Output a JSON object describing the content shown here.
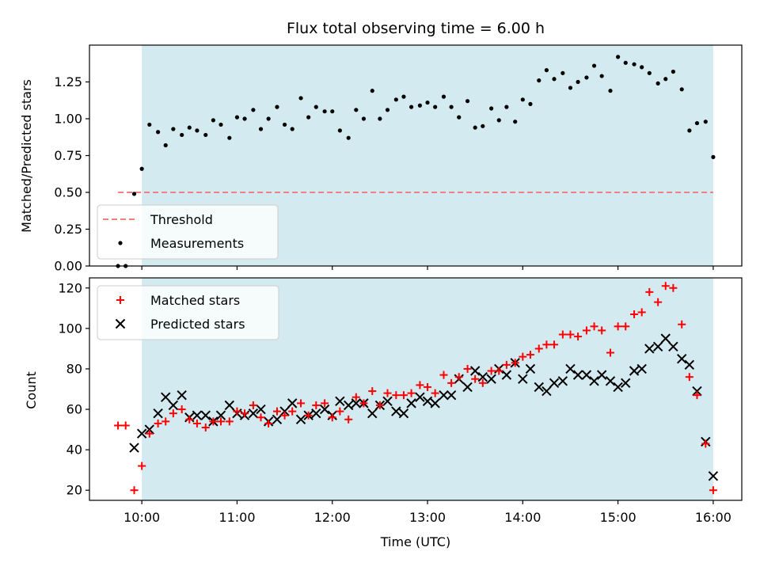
{
  "colors": {
    "observing_window": "#d3eaf0",
    "threshold": "#f08080",
    "measurements": "#000000",
    "matched": "#ff0000",
    "predicted": "#000000"
  },
  "chart_data": [
    {
      "type": "scatter",
      "title": "Flux total observing time = 6.00 h",
      "xlabel": "",
      "ylabel": "Matched/Predicted stars",
      "xlim": [
        9.45,
        16.3
      ],
      "ylim": [
        0.0,
        1.5
      ],
      "yticks": [
        0.0,
        0.25,
        0.5,
        0.75,
        1.0,
        1.25
      ],
      "ytick_labels": [
        "0.00",
        "0.25",
        "0.50",
        "0.75",
        "1.00",
        "1.25"
      ],
      "observing_window": [
        10.0,
        16.0
      ],
      "threshold": {
        "name": "Threshold",
        "y": 0.5,
        "x_range": [
          9.75,
          16.0
        ],
        "style": "dashed"
      },
      "legend": {
        "position": "lower-left",
        "entries": [
          "Threshold",
          "Measurements"
        ]
      },
      "series": [
        {
          "name": "Measurements",
          "marker": "dot",
          "x": [
            9.75,
            9.83,
            9.92,
            10.0,
            10.08,
            10.17,
            10.25,
            10.33,
            10.42,
            10.5,
            10.58,
            10.67,
            10.75,
            10.83,
            10.92,
            11.0,
            11.08,
            11.17,
            11.25,
            11.33,
            11.42,
            11.5,
            11.58,
            11.67,
            11.75,
            11.83,
            11.92,
            12.0,
            12.08,
            12.17,
            12.25,
            12.33,
            12.42,
            12.5,
            12.58,
            12.67,
            12.75,
            12.83,
            12.92,
            13.0,
            13.08,
            13.17,
            13.25,
            13.33,
            13.42,
            13.5,
            13.58,
            13.67,
            13.75,
            13.83,
            13.92,
            14.0,
            14.08,
            14.17,
            14.25,
            14.33,
            14.42,
            14.5,
            14.58,
            14.67,
            14.75,
            14.83,
            14.92,
            15.0,
            15.08,
            15.17,
            15.25,
            15.33,
            15.42,
            15.5,
            15.58,
            15.67,
            15.75,
            15.83,
            15.92,
            16.0
          ],
          "y": [
            0.0,
            0.0,
            0.49,
            0.66,
            0.96,
            0.91,
            0.82,
            0.93,
            0.89,
            0.94,
            0.92,
            0.89,
            0.99,
            0.96,
            0.87,
            1.01,
            1.0,
            1.06,
            0.93,
            1.0,
            1.08,
            0.96,
            0.93,
            1.14,
            1.01,
            1.08,
            1.05,
            1.05,
            0.92,
            0.87,
            1.06,
            1.0,
            1.19,
            1.0,
            1.06,
            1.13,
            1.15,
            1.08,
            1.09,
            1.11,
            1.08,
            1.15,
            1.08,
            1.01,
            1.12,
            0.94,
            0.95,
            1.07,
            0.99,
            1.08,
            0.98,
            1.13,
            1.1,
            1.26,
            1.33,
            1.27,
            1.31,
            1.21,
            1.25,
            1.28,
            1.36,
            1.29,
            1.19,
            1.42,
            1.38,
            1.37,
            1.35,
            1.31,
            1.24,
            1.27,
            1.32,
            1.2,
            0.92,
            0.97,
            0.98,
            0.74
          ]
        }
      ]
    },
    {
      "type": "scatter",
      "title": "",
      "xlabel": "Time (UTC)",
      "ylabel": "Count",
      "xlim": [
        9.45,
        16.3
      ],
      "ylim": [
        15,
        125
      ],
      "yticks": [
        20,
        40,
        60,
        80,
        100,
        120
      ],
      "xticks": [
        10,
        11,
        12,
        13,
        14,
        15,
        16
      ],
      "xtick_labels": [
        "10:00",
        "11:00",
        "12:00",
        "13:00",
        "14:00",
        "15:00",
        "16:00"
      ],
      "observing_window": [
        10.0,
        16.0
      ],
      "legend": {
        "position": "upper-left",
        "entries": [
          "Matched stars",
          "Predicted stars"
        ]
      },
      "series": [
        {
          "name": "Matched stars",
          "marker": "plus",
          "x": [
            9.75,
            9.83,
            9.92,
            10.0,
            10.08,
            10.17,
            10.25,
            10.33,
            10.42,
            10.5,
            10.58,
            10.67,
            10.75,
            10.83,
            10.92,
            11.0,
            11.08,
            11.17,
            11.25,
            11.33,
            11.42,
            11.5,
            11.58,
            11.67,
            11.75,
            11.83,
            11.92,
            12.0,
            12.08,
            12.17,
            12.25,
            12.33,
            12.42,
            12.5,
            12.58,
            12.67,
            12.75,
            12.83,
            12.92,
            13.0,
            13.08,
            13.17,
            13.25,
            13.33,
            13.42,
            13.5,
            13.58,
            13.67,
            13.75,
            13.83,
            13.92,
            14.0,
            14.08,
            14.17,
            14.25,
            14.33,
            14.42,
            14.5,
            14.58,
            14.67,
            14.75,
            14.83,
            14.92,
            15.0,
            15.08,
            15.17,
            15.25,
            15.33,
            15.42,
            15.5,
            15.58,
            15.67,
            15.75,
            15.83,
            15.92,
            16.0
          ],
          "y": [
            52,
            52,
            20,
            32,
            48,
            53,
            54,
            58,
            60,
            55,
            53,
            51,
            54,
            54,
            54,
            59,
            58,
            62,
            56,
            53,
            59,
            57,
            59,
            63,
            57,
            62,
            63,
            56,
            59,
            55,
            66,
            63,
            69,
            62,
            68,
            67,
            67,
            68,
            72,
            71,
            68,
            77,
            73,
            76,
            80,
            75,
            73,
            79,
            79,
            82,
            83,
            86,
            87,
            90,
            92,
            92,
            97,
            97,
            96,
            99,
            101,
            99,
            88,
            101,
            101,
            107,
            108,
            118,
            113,
            121,
            120,
            102,
            76,
            67,
            43,
            20
          ]
        },
        {
          "name": "Predicted stars",
          "marker": "cross",
          "x": [
            9.92,
            10.0,
            10.08,
            10.17,
            10.25,
            10.33,
            10.42,
            10.5,
            10.58,
            10.67,
            10.75,
            10.83,
            10.92,
            11.0,
            11.08,
            11.17,
            11.25,
            11.33,
            11.42,
            11.5,
            11.58,
            11.67,
            11.75,
            11.83,
            11.92,
            12.0,
            12.08,
            12.17,
            12.25,
            12.33,
            12.42,
            12.5,
            12.58,
            12.67,
            12.75,
            12.83,
            12.92,
            13.0,
            13.08,
            13.17,
            13.25,
            13.33,
            13.42,
            13.5,
            13.58,
            13.67,
            13.75,
            13.83,
            13.92,
            14.0,
            14.08,
            14.17,
            14.25,
            14.33,
            14.42,
            14.5,
            14.58,
            14.67,
            14.75,
            14.83,
            14.92,
            15.0,
            15.08,
            15.17,
            15.25,
            15.33,
            15.42,
            15.5,
            15.58,
            15.67,
            15.75,
            15.83,
            15.92,
            16.0
          ],
          "y": [
            41,
            48,
            50,
            58,
            66,
            62,
            67,
            56,
            57,
            57,
            54,
            57,
            62,
            58,
            57,
            58,
            60,
            54,
            55,
            59,
            63,
            55,
            57,
            58,
            60,
            57,
            64,
            62,
            63,
            63,
            58,
            62,
            64,
            59,
            58,
            63,
            66,
            64,
            63,
            67,
            67,
            75,
            71,
            79,
            76,
            75,
            80,
            77,
            83,
            75,
            80,
            71,
            69,
            73,
            74,
            80,
            77,
            77,
            74,
            77,
            74,
            71,
            73,
            79,
            80,
            90,
            91,
            95,
            91,
            85,
            82,
            69,
            44,
            27
          ]
        }
      ]
    }
  ]
}
